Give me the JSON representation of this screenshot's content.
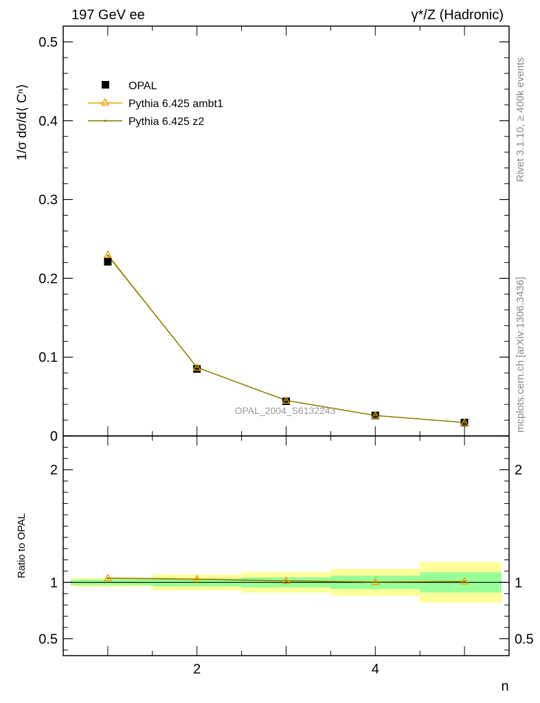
{
  "header": {
    "left_title": "197 GeV ee",
    "right_title": "γ*/Z (Hadronic)"
  },
  "side_labels": {
    "rivet": "Rivet 3.1.10, ≥ 400k events",
    "mcplots": "mcplots.cern.ch [arXiv:1306.3436]"
  },
  "watermark": "OPAL_2004_S6132243",
  "legend": {
    "items": [
      {
        "label": "OPAL",
        "marker": "square",
        "color": "#000000"
      },
      {
        "label": "Pythia 6.425 ambt1",
        "marker": "triangle",
        "color": "#e8a000"
      },
      {
        "label": "Pythia 6.425 z2",
        "marker": "dot",
        "color": "#7f7f00"
      }
    ]
  },
  "chart_data": [
    {
      "type": "scatter",
      "panel": "main",
      "ylabel": "1/σ dσ/d⟨ Cⁿ⟩",
      "xlim": [
        0.5,
        5.5
      ],
      "ylim": [
        0,
        0.52
      ],
      "yticks": [
        0,
        0.1,
        0.2,
        0.3,
        0.4,
        0.5
      ],
      "ytick_labels": [
        "0",
        "0.1",
        "0.2",
        "0.3",
        "0.4",
        "0.5"
      ],
      "series": [
        {
          "name": "OPAL",
          "x": [
            1,
            2,
            3,
            4,
            5
          ],
          "y": [
            0.221,
            0.085,
            0.044,
            0.026,
            0.017
          ]
        },
        {
          "name": "Pythia 6.425 ambt1",
          "x": [
            1,
            2,
            3,
            4,
            5
          ],
          "y": [
            0.23,
            0.087,
            0.045,
            0.026,
            0.017
          ]
        },
        {
          "name": "Pythia 6.425 z2",
          "x": [
            1,
            2,
            3,
            4,
            5
          ],
          "y": [
            0.229,
            0.087,
            0.045,
            0.026,
            0.017
          ]
        }
      ]
    },
    {
      "type": "line",
      "panel": "ratio",
      "ylabel": "Ratio to OPAL",
      "xlabel": "n",
      "xlim": [
        0.5,
        5.5
      ],
      "ylim": [
        0.35,
        2.3
      ],
      "xticks": [
        2,
        4
      ],
      "xtick_labels": [
        "2",
        "4"
      ],
      "yticks": [
        0.5,
        1,
        2
      ],
      "ytick_labels": [
        "0.5",
        "1",
        "2"
      ],
      "bands": {
        "x_edges": [
          0.5,
          1.5,
          2.5,
          3.5,
          4.5,
          5.5
        ],
        "yellow_low": [
          0.96,
          0.93,
          0.91,
          0.88,
          0.82
        ],
        "yellow_high": [
          1.04,
          1.07,
          1.09,
          1.12,
          1.18
        ],
        "green_low": [
          0.975,
          0.965,
          0.955,
          0.94,
          0.91
        ],
        "green_high": [
          1.025,
          1.035,
          1.045,
          1.06,
          1.09
        ]
      },
      "series": [
        {
          "name": "Pythia 6.425 ambt1",
          "x": [
            1,
            2,
            3,
            4,
            5
          ],
          "y": [
            1.04,
            1.03,
            1.015,
            1.005,
            1.01
          ]
        },
        {
          "name": "Pythia 6.425 z2",
          "x": [
            1,
            2,
            3,
            4,
            5
          ],
          "y": [
            1.036,
            1.028,
            1.013,
            1.004,
            1.008
          ]
        }
      ]
    }
  ]
}
